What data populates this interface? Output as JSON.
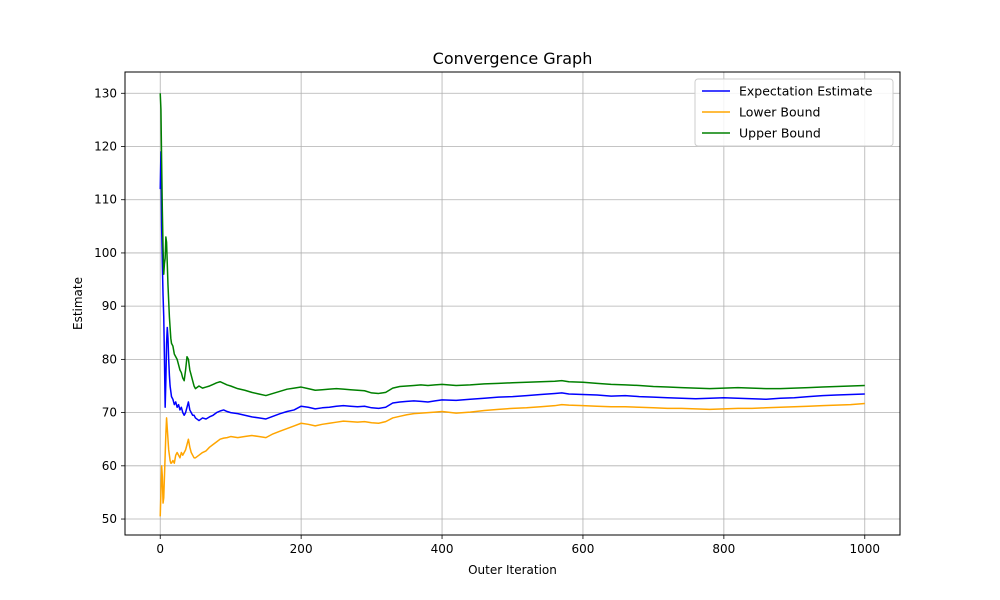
{
  "chart_data": {
    "type": "line",
    "title": "Convergence Graph",
    "xlabel": "Outer Iteration",
    "ylabel": "Estimate",
    "xlim": [
      -50,
      1050
    ],
    "ylim": [
      47,
      134
    ],
    "xticks": [
      0,
      200,
      400,
      600,
      800,
      1000
    ],
    "yticks": [
      50,
      60,
      70,
      80,
      90,
      100,
      110,
      120,
      130
    ],
    "grid": true,
    "legend_position": "top-right",
    "series": [
      {
        "name": "Expectation Estimate",
        "color": "#0000ff",
        "x": [
          0,
          1,
          2,
          3,
          4,
          5,
          6,
          7,
          8,
          9,
          10,
          11,
          12,
          13,
          14,
          15,
          16,
          18,
          20,
          22,
          24,
          26,
          28,
          30,
          32,
          34,
          36,
          38,
          40,
          42,
          44,
          46,
          48,
          50,
          55,
          60,
          65,
          70,
          75,
          80,
          85,
          90,
          95,
          100,
          110,
          120,
          130,
          140,
          150,
          160,
          170,
          180,
          190,
          200,
          210,
          220,
          230,
          240,
          250,
          260,
          270,
          280,
          290,
          300,
          310,
          320,
          330,
          340,
          350,
          360,
          370,
          380,
          390,
          400,
          420,
          440,
          460,
          480,
          500,
          520,
          540,
          560,
          570,
          580,
          600,
          620,
          640,
          660,
          680,
          700,
          720,
          740,
          760,
          780,
          800,
          820,
          840,
          860,
          880,
          900,
          920,
          940,
          960,
          980,
          1000
        ],
        "y": [
          112,
          119,
          105,
          98,
          92,
          88,
          80,
          71,
          76,
          83,
          86,
          84,
          80,
          77,
          75,
          74,
          73,
          72.5,
          71.5,
          72,
          71,
          71.5,
          70.5,
          71,
          70,
          69.5,
          70,
          71,
          72,
          70.5,
          70,
          69.5,
          69.5,
          69,
          68.5,
          69,
          68.8,
          69.2,
          69.5,
          70,
          70.3,
          70.5,
          70.2,
          70,
          69.8,
          69.5,
          69.2,
          69,
          68.8,
          69.3,
          69.8,
          70.2,
          70.5,
          71.2,
          71,
          70.7,
          70.9,
          71,
          71.2,
          71.3,
          71.2,
          71.1,
          71.2,
          70.9,
          70.8,
          71,
          71.8,
          72,
          72.1,
          72.2,
          72.1,
          72,
          72.2,
          72.4,
          72.3,
          72.5,
          72.7,
          72.9,
          73,
          73.2,
          73.4,
          73.6,
          73.7,
          73.5,
          73.4,
          73.3,
          73.1,
          73.2,
          73,
          72.9,
          72.8,
          72.7,
          72.6,
          72.7,
          72.8,
          72.7,
          72.6,
          72.5,
          72.7,
          72.8,
          73,
          73.2,
          73.3,
          73.4,
          73.5
        ]
      },
      {
        "name": "Lower Bound",
        "color": "#ffa500",
        "x": [
          0,
          1,
          2,
          3,
          4,
          5,
          6,
          7,
          8,
          9,
          10,
          11,
          12,
          13,
          14,
          15,
          16,
          18,
          20,
          22,
          24,
          26,
          28,
          30,
          32,
          34,
          36,
          38,
          40,
          42,
          44,
          46,
          48,
          50,
          55,
          60,
          65,
          70,
          75,
          80,
          85,
          90,
          95,
          100,
          110,
          120,
          130,
          140,
          150,
          160,
          170,
          180,
          190,
          200,
          210,
          220,
          230,
          240,
          250,
          260,
          270,
          280,
          290,
          300,
          310,
          320,
          330,
          340,
          350,
          360,
          370,
          380,
          390,
          400,
          420,
          440,
          460,
          480,
          500,
          520,
          540,
          560,
          570,
          580,
          600,
          620,
          640,
          660,
          680,
          700,
          720,
          740,
          760,
          780,
          800,
          820,
          840,
          860,
          880,
          900,
          920,
          940,
          960,
          980,
          1000
        ],
        "y": [
          50.5,
          55,
          60,
          58,
          53,
          54,
          58,
          62,
          66,
          69,
          67,
          65,
          63,
          62,
          61,
          60.5,
          60.5,
          61,
          60.5,
          62,
          62.5,
          62,
          61.5,
          62.5,
          62,
          62.5,
          63,
          64,
          65,
          63.5,
          62.5,
          62,
          61.5,
          61.5,
          62,
          62.5,
          62.8,
          63.5,
          64,
          64.5,
          65,
          65.2,
          65.3,
          65.5,
          65.3,
          65.5,
          65.7,
          65.5,
          65.3,
          66,
          66.5,
          67,
          67.5,
          68,
          67.8,
          67.5,
          67.8,
          68,
          68.2,
          68.4,
          68.3,
          68.2,
          68.3,
          68.1,
          68,
          68.3,
          69,
          69.3,
          69.6,
          69.8,
          69.9,
          70,
          70.1,
          70.2,
          69.9,
          70.1,
          70.4,
          70.6,
          70.8,
          70.9,
          71.1,
          71.3,
          71.5,
          71.4,
          71.3,
          71.2,
          71.1,
          71.1,
          71,
          70.9,
          70.8,
          70.8,
          70.7,
          70.6,
          70.7,
          70.8,
          70.8,
          70.9,
          71,
          71.1,
          71.2,
          71.3,
          71.4,
          71.5,
          71.7
        ]
      },
      {
        "name": "Upper Bound",
        "color": "#008000",
        "x": [
          0,
          1,
          2,
          3,
          4,
          5,
          6,
          7,
          8,
          9,
          10,
          11,
          12,
          13,
          14,
          15,
          16,
          18,
          20,
          22,
          24,
          26,
          28,
          30,
          32,
          34,
          36,
          38,
          40,
          42,
          44,
          46,
          48,
          50,
          55,
          60,
          65,
          70,
          75,
          80,
          85,
          90,
          95,
          100,
          110,
          120,
          130,
          140,
          150,
          160,
          170,
          180,
          190,
          200,
          210,
          220,
          230,
          240,
          250,
          260,
          270,
          280,
          290,
          300,
          310,
          320,
          330,
          340,
          350,
          360,
          370,
          380,
          390,
          400,
          420,
          440,
          460,
          480,
          500,
          520,
          540,
          560,
          570,
          580,
          600,
          620,
          640,
          660,
          680,
          700,
          720,
          740,
          760,
          780,
          800,
          820,
          840,
          860,
          880,
          900,
          920,
          940,
          960,
          980,
          1000
        ],
        "y": [
          130,
          127,
          117,
          108,
          101,
          96,
          98,
          99,
          103,
          102,
          98,
          94,
          91,
          88,
          86,
          84,
          83,
          82.5,
          81,
          80.5,
          80,
          79,
          78,
          77.5,
          76.5,
          76,
          78,
          80.5,
          80,
          78,
          77,
          76,
          75,
          74.5,
          75,
          74.6,
          74.8,
          75,
          75.3,
          75.6,
          75.8,
          75.5,
          75.2,
          75,
          74.5,
          74.2,
          73.8,
          73.5,
          73.2,
          73.6,
          74,
          74.4,
          74.6,
          74.8,
          74.5,
          74.2,
          74.3,
          74.4,
          74.5,
          74.4,
          74.3,
          74.2,
          74.1,
          73.7,
          73.6,
          73.8,
          74.6,
          74.9,
          75,
          75.1,
          75.2,
          75.1,
          75.2,
          75.3,
          75.1,
          75.2,
          75.4,
          75.5,
          75.6,
          75.7,
          75.8,
          75.9,
          76,
          75.8,
          75.7,
          75.5,
          75.3,
          75.2,
          75.1,
          74.9,
          74.8,
          74.7,
          74.6,
          74.5,
          74.6,
          74.7,
          74.6,
          74.5,
          74.5,
          74.6,
          74.7,
          74.8,
          74.9,
          75,
          75.1
        ]
      }
    ]
  }
}
